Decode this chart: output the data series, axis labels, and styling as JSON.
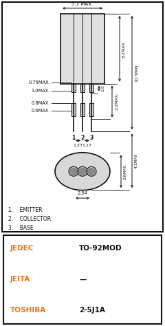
{
  "bg_color": "#ffffff",
  "diagram_bg": "#ffffff",
  "border_color": "#111111",
  "text_color": "#111111",
  "table_rows": [
    {
      "label": "JEDEC",
      "value": "TO-92MOD",
      "bg": "#ffffff"
    },
    {
      "label": "JEITA",
      "value": "—",
      "bg": "#ffffff"
    },
    {
      "label": "TOSHIBA",
      "value": "2-5J1A",
      "bg": "#ffffff"
    }
  ],
  "dim_labels": {
    "top_width": "5.1 MAX.",
    "right_height_top": "8.2MAX.",
    "right_height_total": "10.5MIN.",
    "mid_height": "2.2MAX.",
    "lead_spacing_left": "1.27",
    "lead_spacing_right": "1.27",
    "lead_width1": "0.75MAX.",
    "lead_width2": "1.0MAX.",
    "lead_width3": "0.8MAX.",
    "lead_width4": "0.6MAX.",
    "small_dim": "1.0",
    "bottom_width": "2.54",
    "bottom_height1": "0.6MAX.",
    "bottom_height2": "4.1MAX",
    "pin_labels": [
      "1",
      "2",
      "3"
    ]
  },
  "legend": [
    "1.    EMITTER",
    "2.    COLLECTOR",
    "3.    BASE"
  ],
  "table_label_color": "#e07820",
  "table_value_color": "#111111"
}
